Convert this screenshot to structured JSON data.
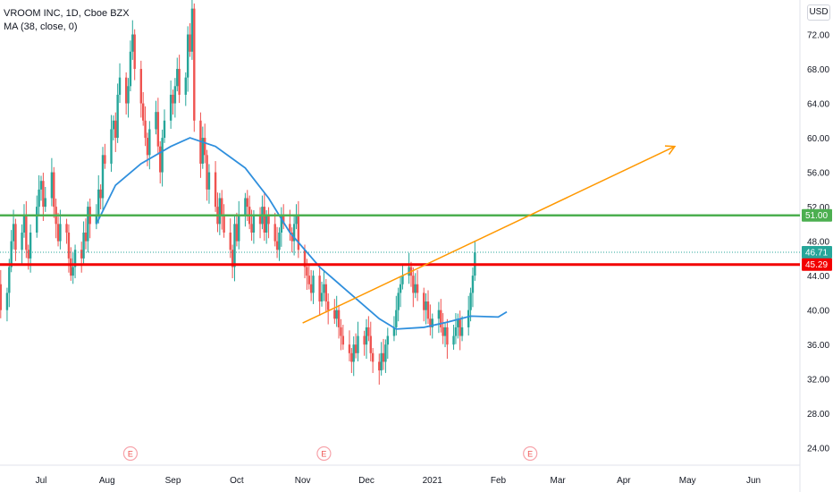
{
  "legend": {
    "symbol": "VROOM INC, 1D, Cboe BZX",
    "indicator": "MA (38, close, 0)"
  },
  "currency_label": "USD",
  "colors": {
    "up": "#26a69a",
    "down": "#ef5350",
    "ma": "#2f8fdd",
    "trend": "#ff9800",
    "resistance": "#4caf50",
    "support": "#f20000",
    "last_price": "#26a69a"
  },
  "chart_data": {
    "type": "candlestick",
    "ylim": [
      22,
      76
    ],
    "y_ticks": [
      "24.00",
      "28.00",
      "32.00",
      "36.00",
      "40.00",
      "44.00",
      "48.00",
      "52.00",
      "56.00",
      "60.00",
      "64.00",
      "68.00",
      "72.00"
    ],
    "x_ticks": [
      "Jul",
      "Aug",
      "Sep",
      "Oct",
      "Nov",
      "Dec",
      "2021",
      "Feb",
      "Mar",
      "Apr",
      "May",
      "Jun"
    ],
    "x_tick_dates": [
      "2020-07-01",
      "2020-08-01",
      "2020-09-01",
      "2020-10-01",
      "2020-11-01",
      "2020-12-01",
      "2021-01-01",
      "2021-02-01",
      "2021-03-01",
      "2021-04-01",
      "2021-05-01",
      "2021-06-01"
    ],
    "start_date": "2020-06-09",
    "closes": [
      44.5,
      46.5,
      43,
      40,
      42,
      45,
      48,
      50,
      47,
      49,
      51,
      47,
      46,
      49,
      52,
      54,
      55,
      52,
      53,
      56,
      52,
      50,
      48,
      50,
      49,
      46,
      44,
      45,
      47,
      46,
      49,
      48,
      52,
      50,
      51,
      54,
      53,
      58,
      57,
      61,
      62,
      60,
      65,
      67,
      64,
      66,
      70,
      72,
      68,
      64,
      62,
      60,
      58,
      61,
      63,
      59,
      56,
      60,
      62,
      65,
      64,
      66,
      68,
      65,
      67,
      72,
      70,
      75,
      62,
      57,
      60,
      58,
      54,
      56,
      52,
      50,
      53,
      51,
      49,
      47,
      45,
      50,
      48,
      51,
      53,
      52,
      50,
      49,
      51,
      50,
      52,
      49,
      51,
      50,
      48,
      47,
      49,
      51,
      50,
      49,
      48,
      50,
      51,
      47,
      45,
      44,
      43,
      42,
      44,
      41,
      42,
      43,
      41,
      40,
      39,
      40,
      38,
      37,
      36,
      35,
      34,
      36,
      35,
      37,
      36,
      38,
      37,
      35,
      34,
      33,
      35,
      34,
      36,
      37,
      38,
      40,
      42,
      43,
      44,
      45,
      44,
      42,
      43,
      42,
      40,
      41,
      39,
      38,
      39,
      40,
      38,
      37,
      38,
      36,
      37,
      38,
      39,
      37,
      38,
      40,
      42,
      44,
      46.71
    ],
    "moving_average": {
      "name": "MA (38, close, 0)",
      "points": [
        [
          "2020-07-27",
          50
        ],
        [
          "2020-08-05",
          54.5
        ],
        [
          "2020-08-17",
          57
        ],
        [
          "2020-08-31",
          59
        ],
        [
          "2020-09-09",
          60
        ],
        [
          "2020-09-21",
          59
        ],
        [
          "2020-10-05",
          56.5
        ],
        [
          "2020-10-16",
          53
        ],
        [
          "2020-10-26",
          49
        ],
        [
          "2020-11-09",
          45
        ],
        [
          "2020-11-23",
          42
        ],
        [
          "2020-12-07",
          39
        ],
        [
          "2020-12-15",
          37.8
        ],
        [
          "2020-12-28",
          38
        ],
        [
          "2021-01-08",
          38.6
        ],
        [
          "2021-01-19",
          39.3
        ],
        [
          "2021-02-01",
          39.2
        ],
        [
          "2021-02-05",
          39.8
        ]
      ]
    },
    "trendline": {
      "from": [
        "2020-11-01",
        38.5
      ],
      "to": [
        "2021-04-25",
        59
      ]
    },
    "resistance": 51.0,
    "support": 45.29,
    "last_price": 46.71,
    "price_labels": [
      "51.00",
      "46.71",
      "45.29"
    ],
    "earnings": [
      {
        "date": "2020-08-12",
        "label": "E"
      },
      {
        "date": "2020-11-11",
        "label": "E"
      },
      {
        "date": "2021-02-16",
        "label": "E"
      }
    ]
  }
}
